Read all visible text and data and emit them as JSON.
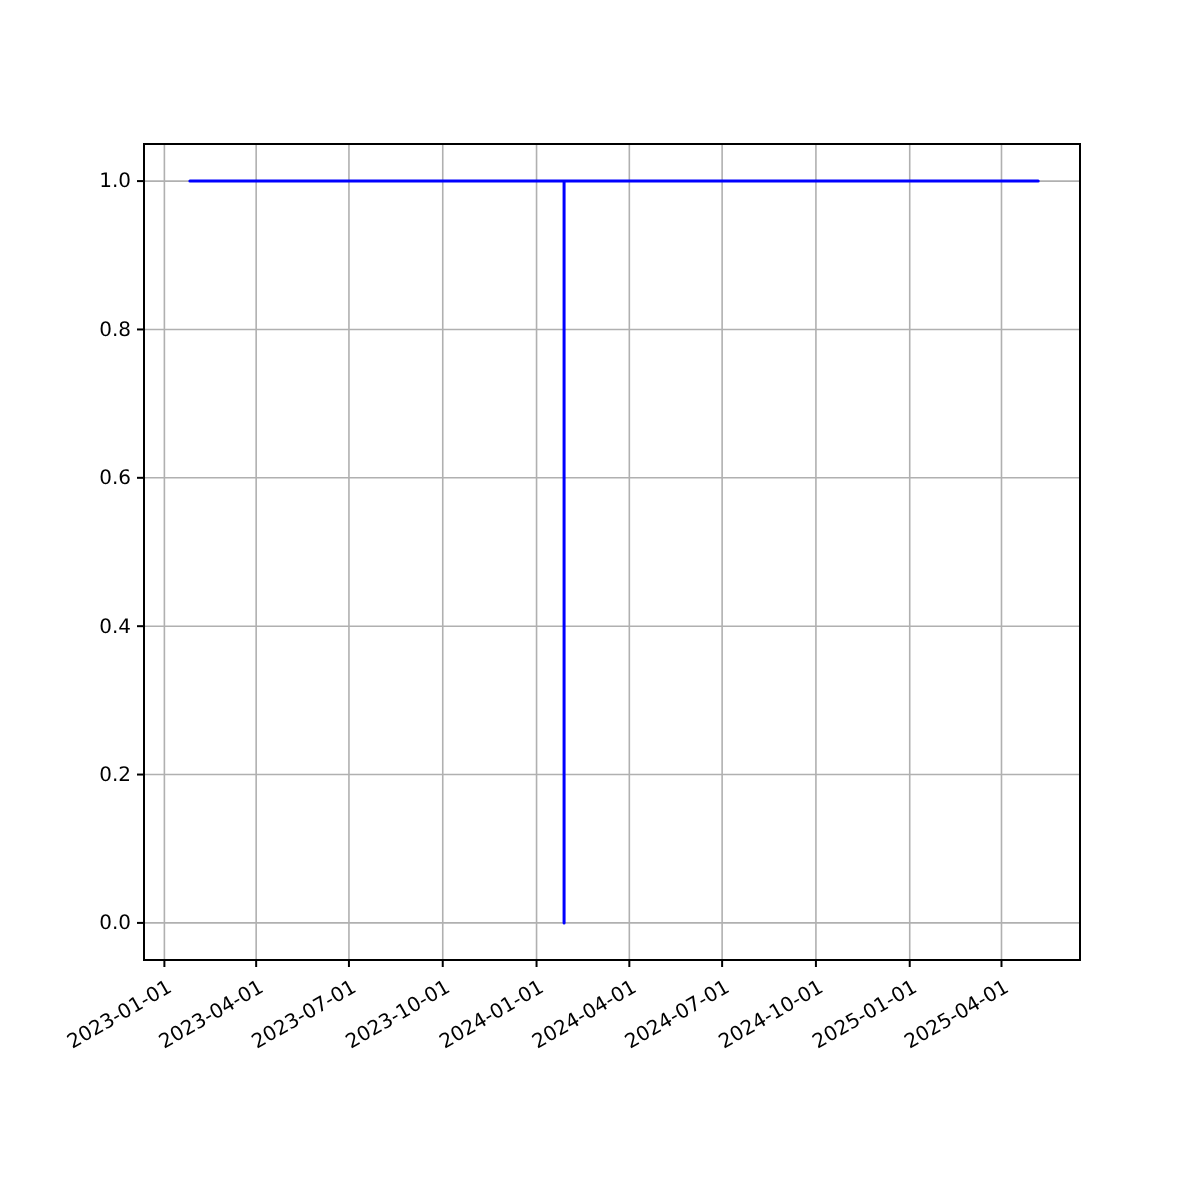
{
  "chart_data": {
    "type": "line",
    "x": [
      "2023-01-26",
      "2024-01-28",
      "2024-01-28",
      "2024-01-28",
      "2025-05-07"
    ],
    "series": [
      {
        "color": "#0000ff",
        "values": [
          1,
          1,
          0,
          1,
          1
        ]
      }
    ],
    "xlim": [
      "2022-12-12",
      "2025-06-17"
    ],
    "xticks": [
      "2023-01-01",
      "2023-04-01",
      "2023-07-01",
      "2023-10-01",
      "2024-01-01",
      "2024-04-01",
      "2024-07-01",
      "2024-10-01",
      "2025-01-01",
      "2025-04-01"
    ],
    "ylim": [
      -0.05,
      1.05
    ],
    "yticks": [
      {
        "value": 0,
        "label": "0.0"
      },
      {
        "value": 0.2,
        "label": "0.2"
      },
      {
        "value": 0.4,
        "label": "0.4"
      },
      {
        "value": 0.6,
        "label": "0.6"
      },
      {
        "value": 0.8,
        "label": "0.8"
      },
      {
        "value": 1,
        "label": "1.0"
      }
    ],
    "grid": true,
    "marker": "none",
    "line_style": "solid"
  }
}
